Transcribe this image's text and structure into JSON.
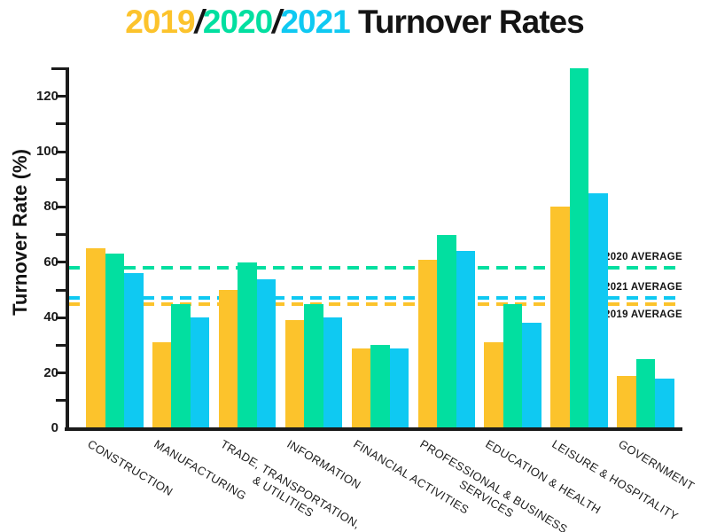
{
  "title": {
    "parts": [
      {
        "text": "2019",
        "color": "#FCC32C",
        "slash": false
      },
      {
        "text": "/",
        "color": "#141414",
        "slash": true
      },
      {
        "text": "2020",
        "color": "#02DFA0",
        "slash": false
      },
      {
        "text": "/",
        "color": "#141414",
        "slash": true
      },
      {
        "text": "2021",
        "color": "#0FC9F2",
        "slash": false
      },
      {
        "text": " Turnover Rates",
        "color": "#141414",
        "slash": false
      }
    ]
  },
  "chart_data": {
    "type": "bar",
    "title": "2019/2020/2021 Turnover Rates",
    "ylabel": "Turnover Rate (%)",
    "xlabel": "",
    "ylim": [
      0,
      130
    ],
    "y_major_ticks": [
      0,
      20,
      40,
      60,
      80,
      100,
      120
    ],
    "y_minor_tick_interval": 10,
    "grid": false,
    "legend_position": "title",
    "categories": [
      "CONSTRUCTION",
      "MANUFACTURING",
      "TRADE, TRANSPORTATION,\n& UTILITIES",
      "INFORMATION",
      "FINANCIAL ACTIVITIES",
      "PROFESSIONAL & BUSINESS\nSERVICES",
      "EDUCATION & HEALTH",
      "LEISURE & HOSPITALITY",
      "GOVERNMENT"
    ],
    "series": [
      {
        "name": "2019",
        "color": "#FCC32C",
        "values": [
          65,
          31,
          50,
          39,
          29,
          61,
          31,
          80,
          19
        ]
      },
      {
        "name": "2020",
        "color": "#02DFA0",
        "values": [
          63,
          45,
          60,
          45,
          30,
          70,
          45,
          130,
          25
        ]
      },
      {
        "name": "2021",
        "color": "#0FC9F2",
        "values": [
          56,
          40,
          54,
          40,
          29,
          64,
          38,
          85,
          18
        ]
      }
    ],
    "average_lines": [
      {
        "label": "2020 AVERAGE",
        "value": 58,
        "color": "#02DFA0",
        "label_position": "above"
      },
      {
        "label": "2021 AVERAGE",
        "value": 47,
        "color": "#0FC9F2",
        "label_position": "above"
      },
      {
        "label": "2019 AVERAGE",
        "value": 45,
        "color": "#FCC32C",
        "label_position": "below"
      }
    ]
  }
}
